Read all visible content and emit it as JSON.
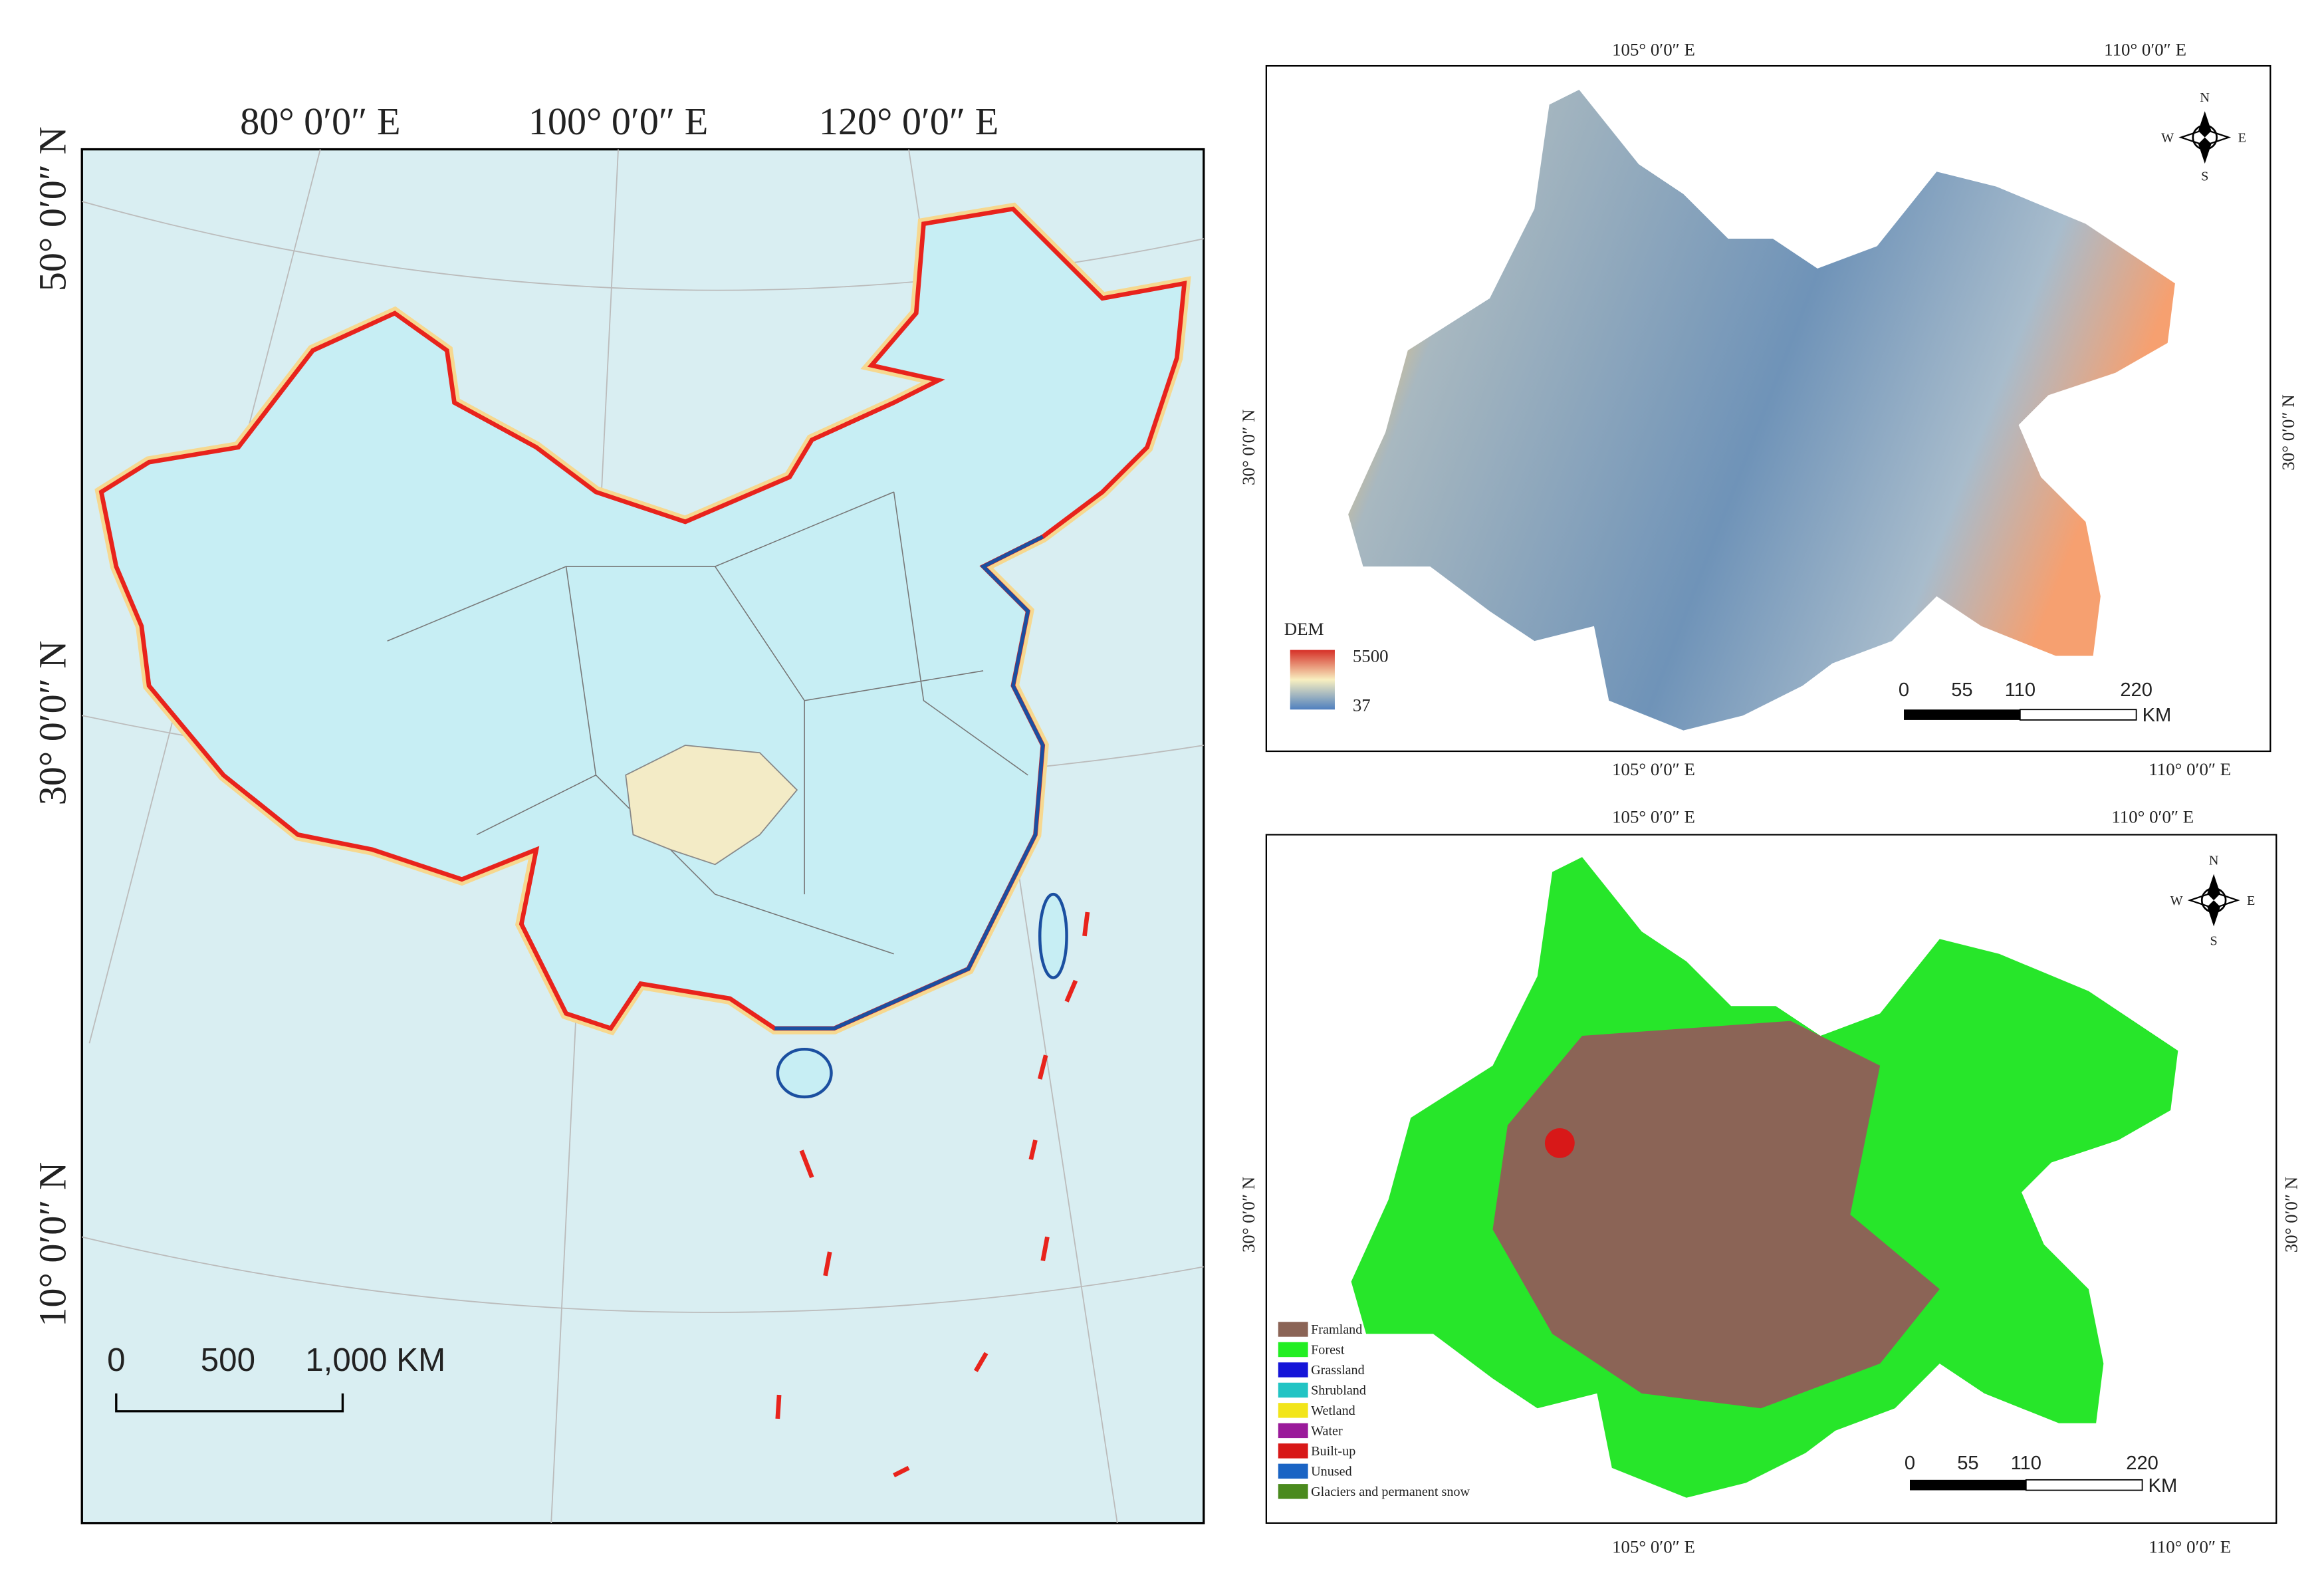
{
  "china_map": {
    "top_labels": [
      "80° 0′0″ E",
      "100° 0′0″ E",
      "120° 0′0″ E"
    ],
    "left_labels": [
      "50° 0′0″ N",
      "30° 0′0″ N",
      "10° 0′0″ N"
    ],
    "scale_bar": [
      "0",
      "500",
      "1,000 KM"
    ]
  },
  "dem_map": {
    "top_labels": [
      "105° 0′0″ E",
      "110° 0′0″ E"
    ],
    "bottom_labels": [
      "105° 0′0″ E",
      "110° 0′0″ E"
    ],
    "left_label": "30° 0′0″ N",
    "right_label": "30° 0′0″ N",
    "compass": [
      "N",
      "S",
      "W",
      "E"
    ],
    "legend": {
      "title": "DEM",
      "high": "5500",
      "low": "37"
    },
    "scale_bar": {
      "ticks": [
        "0",
        "55",
        "110",
        "220"
      ],
      "unit": "KM"
    }
  },
  "landuse_map": {
    "top_labels": [
      "105° 0′0″ E",
      "110° 0′0″ E"
    ],
    "bottom_labels": [
      "105° 0′0″ E",
      "110° 0′0″ E"
    ],
    "left_label": "30° 0′0″ N",
    "right_label": "30° 0′0″ N",
    "compass": [
      "N",
      "S",
      "W",
      "E"
    ],
    "legend": [
      {
        "label": "Framland",
        "color": "#8b6456"
      },
      {
        "label": "Forest",
        "color": "#22ee22"
      },
      {
        "label": "Grassland",
        "color": "#1515d8"
      },
      {
        "label": "Shrubland",
        "color": "#22c4c4"
      },
      {
        "label": "Wetland",
        "color": "#f2e51a"
      },
      {
        "label": "Water",
        "color": "#9a1a9a"
      },
      {
        "label": "Built-up",
        "color": "#d81818"
      },
      {
        "label": "Unused",
        "color": "#1a64c4"
      },
      {
        "label": "Glaciers and permanent snow",
        "color": "#4a8a1e"
      }
    ],
    "scale_bar": {
      "ticks": [
        "0",
        "55",
        "110",
        "220"
      ],
      "unit": "KM"
    }
  }
}
